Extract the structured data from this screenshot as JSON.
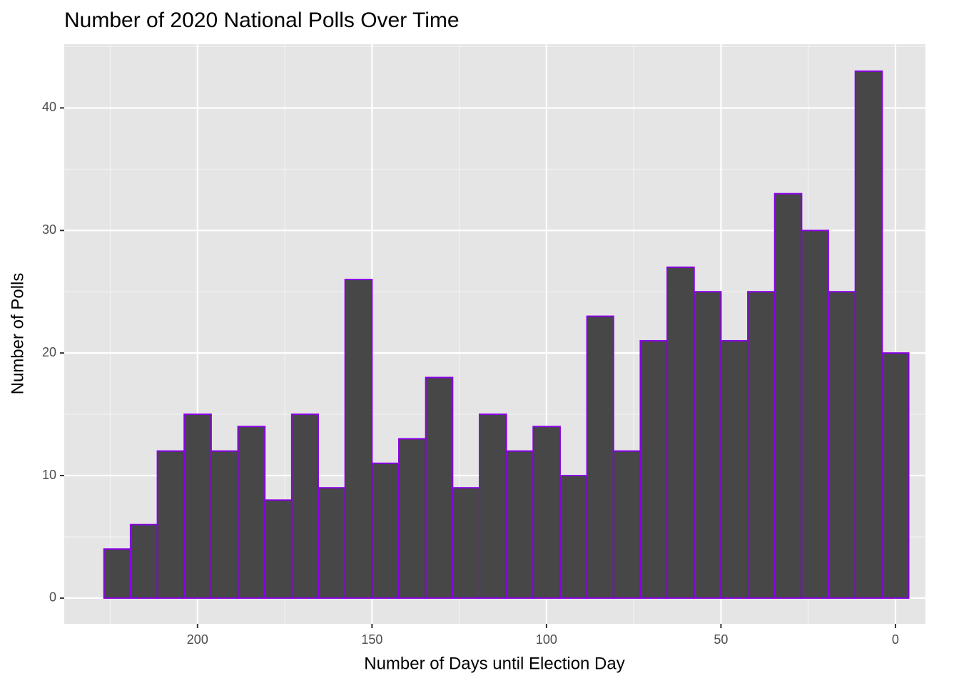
{
  "chart_data": {
    "type": "histogram",
    "title": "Number of 2020 National Polls Over Time",
    "x_label": "Number of Days until Election Day",
    "y_label": "Number of Polls",
    "bins": [
      226.8,
      219.2,
      211.5,
      203.8,
      196.1,
      188.4,
      180.7,
      173.0,
      165.4,
      157.7,
      150.0,
      142.3,
      134.6,
      126.9,
      119.2,
      111.5,
      103.8,
      96.1,
      88.4,
      80.8,
      73.1,
      65.4,
      57.7,
      50.0,
      42.3,
      34.6,
      26.9,
      19.2,
      11.5,
      3.8,
      -3.8
    ],
    "values": [
      4,
      6,
      12,
      15,
      12,
      14,
      8,
      15,
      9,
      26,
      11,
      13,
      18,
      9,
      15,
      12,
      14,
      10,
      23,
      12,
      21,
      27,
      25,
      21,
      25,
      33,
      30,
      25,
      43,
      20
    ],
    "fill": "#474747",
    "edge_color": "#8a00e6",
    "xlim": [
      -8.6,
      238.2
    ],
    "x_reversed": true,
    "xticks": [
      200,
      150,
      100,
      50,
      0
    ],
    "ylim": [
      -2.1,
      45.2
    ],
    "yticks": [
      0,
      10,
      20,
      30,
      40
    ],
    "grid": true
  }
}
